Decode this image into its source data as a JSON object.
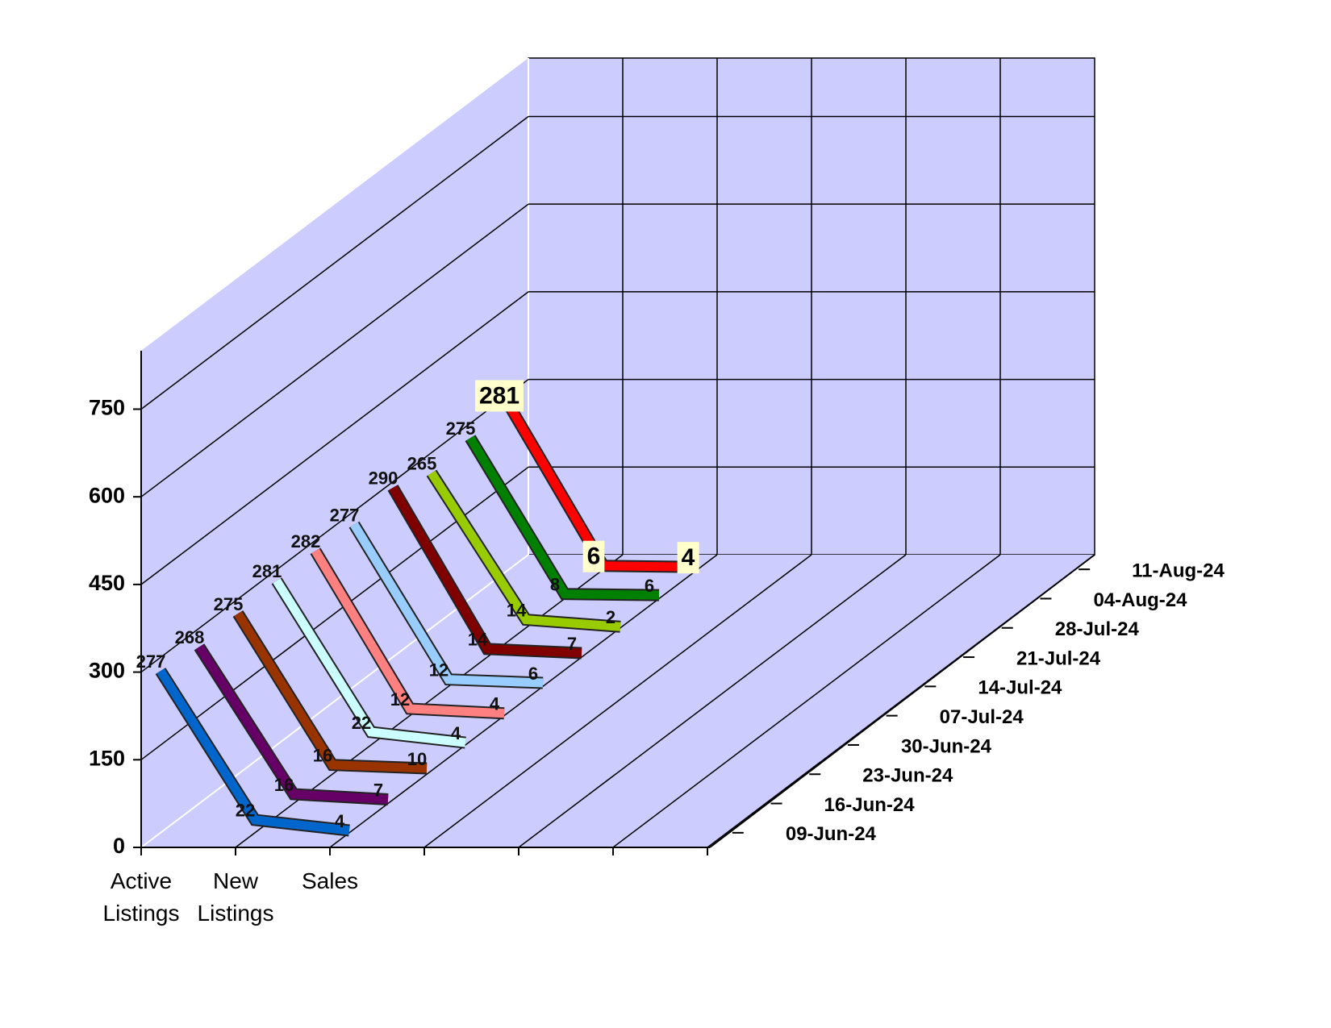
{
  "chart_data": {
    "type": "line3d",
    "categories": [
      "Active Listings",
      "New Listings",
      "Sales"
    ],
    "series": [
      {
        "name": "09-Jun-24",
        "color": "#0066cc",
        "values": [
          277,
          22,
          4
        ]
      },
      {
        "name": "16-Jun-24",
        "color": "#660066",
        "values": [
          268,
          16,
          7
        ]
      },
      {
        "name": "23-Jun-24",
        "color": "#993300",
        "values": [
          275,
          16,
          10
        ]
      },
      {
        "name": "30-Jun-24",
        "color": "#ccffff",
        "values": [
          281,
          22,
          4
        ]
      },
      {
        "name": "07-Jul-24",
        "color": "#ff8080",
        "values": [
          282,
          12,
          4
        ]
      },
      {
        "name": "14-Jul-24",
        "color": "#99ccff",
        "values": [
          277,
          12,
          6
        ]
      },
      {
        "name": "21-Jul-24",
        "color": "#800000",
        "values": [
          290,
          14,
          7
        ]
      },
      {
        "name": "28-Jul-24",
        "color": "#99cc00",
        "values": [
          265,
          14,
          2
        ]
      },
      {
        "name": "04-Aug-24",
        "color": "#008000",
        "values": [
          275,
          8,
          6
        ]
      },
      {
        "name": "11-Aug-24",
        "color": "#ff0000",
        "values": [
          281,
          6,
          4
        ]
      }
    ],
    "ylim": [
      0,
      850
    ],
    "yticks": [
      0,
      150,
      300,
      450,
      600,
      750
    ],
    "grid": true
  }
}
